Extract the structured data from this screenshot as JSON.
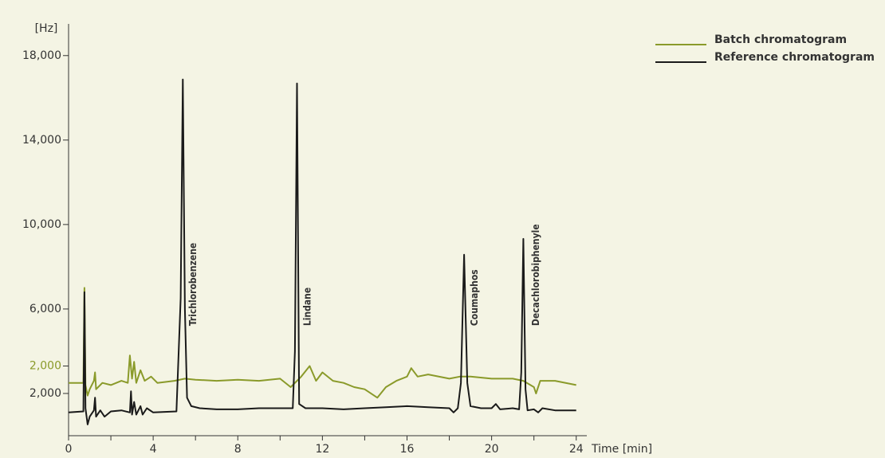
{
  "chart_data": {
    "type": "line",
    "y_label": "[Hz]",
    "x_label": "Time [min]",
    "xlim": [
      0,
      24.5
    ],
    "xticks": [
      0,
      4,
      8,
      12,
      16,
      20,
      24
    ],
    "xminorticks": [
      2,
      6,
      10,
      14,
      18,
      22
    ],
    "ylim": [
      0,
      19500
    ],
    "yticks": [
      {
        "value": 2000,
        "label": "2,000"
      },
      {
        "value": 6000,
        "label": "6,000"
      },
      {
        "value": 10000,
        "label": "10,000"
      },
      {
        "value": 14000,
        "label": "14,000"
      },
      {
        "value": 18000,
        "label": "18,000"
      }
    ],
    "y2lim": [
      -1300,
      18200
    ],
    "y2ticks": [
      {
        "value": 2000,
        "label": "2,000"
      }
    ],
    "y2color": "#8a9a2a",
    "legend": "top-right",
    "series": [
      {
        "name": "Batch chromatogram",
        "color": "#8a9a2a",
        "axis": "y2",
        "x": [
          0,
          0.7,
          0.75,
          0.8,
          0.9,
          1.0,
          1.2,
          1.25,
          1.3,
          1.6,
          2,
          2.5,
          2.8,
          2.9,
          3.0,
          3.1,
          3.2,
          3.4,
          3.6,
          3.9,
          4.2,
          5,
          5.5,
          6,
          7,
          8,
          9,
          10,
          10.5,
          11,
          11.4,
          11.7,
          12,
          12.5,
          13,
          13.5,
          14,
          14.6,
          15,
          15.5,
          16,
          16.2,
          16.5,
          17,
          18,
          18.5,
          19,
          20,
          21,
          21.5,
          22,
          22.1,
          22.3,
          23,
          24
        ],
        "values": [
          1200,
          1200,
          5700,
          1100,
          600,
          900,
          1300,
          1700,
          900,
          1200,
          1100,
          1300,
          1200,
          2500,
          1400,
          2200,
          1200,
          1800,
          1300,
          1500,
          1200,
          1300,
          1400,
          1350,
          1300,
          1350,
          1300,
          1400,
          1000,
          1500,
          2000,
          1300,
          1700,
          1300,
          1200,
          1000,
          900,
          500,
          1000,
          1300,
          1500,
          1900,
          1500,
          1600,
          1400,
          1500,
          1500,
          1400,
          1400,
          1300,
          1000,
          700,
          1300,
          1300,
          1100
        ]
      },
      {
        "name": "Reference chromatogram",
        "color": "#1a1a1a",
        "x": [
          0,
          0.7,
          0.75,
          0.8,
          0.9,
          1.0,
          1.2,
          1.25,
          1.3,
          1.5,
          1.7,
          2.0,
          2.5,
          2.9,
          2.95,
          3.0,
          3.1,
          3.2,
          3.4,
          3.5,
          3.7,
          4.0,
          5.1,
          5.3,
          5.4,
          5.5,
          5.6,
          5.8,
          6.2,
          7,
          8,
          9,
          10.6,
          10.7,
          10.8,
          10.9,
          11.2,
          12,
          13,
          14,
          15,
          16,
          17,
          18,
          18.2,
          18.4,
          18.55,
          18.7,
          18.85,
          19.0,
          19.5,
          20.0,
          20.2,
          20.4,
          21.0,
          21.3,
          21.4,
          21.5,
          21.6,
          21.7,
          22.0,
          22.2,
          22.4,
          23,
          24
        ],
        "values": [
          1100,
          1150,
          6800,
          1300,
          530,
          900,
          1200,
          1800,
          900,
          1200,
          900,
          1150,
          1200,
          1100,
          2100,
          1000,
          1600,
          1000,
          1400,
          1000,
          1300,
          1100,
          1150,
          6500,
          16870,
          6000,
          1800,
          1400,
          1300,
          1250,
          1250,
          1300,
          1300,
          4000,
          16680,
          1500,
          1300,
          1300,
          1250,
          1300,
          1350,
          1400,
          1350,
          1300,
          1100,
          1300,
          2500,
          8570,
          2500,
          1400,
          1300,
          1300,
          1500,
          1250,
          1300,
          1250,
          3000,
          9320,
          2200,
          1200,
          1250,
          1100,
          1300,
          1200,
          1200
        ]
      }
    ],
    "annotations": [
      {
        "text": "Trichlorobenzene",
        "x": 5.9,
        "y": 5200
      },
      {
        "text": "Lindane",
        "x": 11.3,
        "y": 5200
      },
      {
        "text": "Coumaphos",
        "x": 19.2,
        "y": 5200
      },
      {
        "text": "Decachlorobiphenyle",
        "x": 22.1,
        "y": 5200
      }
    ]
  }
}
